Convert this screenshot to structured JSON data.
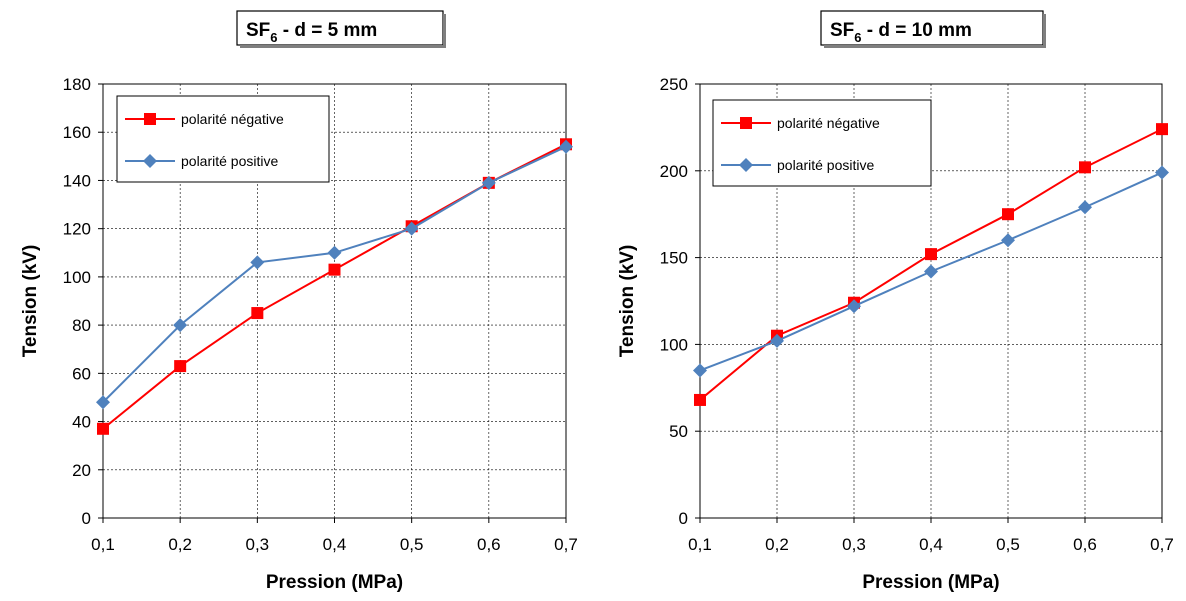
{
  "chart_data": [
    {
      "type": "line",
      "title": "SF6 - d = 5 mm",
      "title_parts": {
        "main": "SF",
        "subscript": "6",
        "rest": " - d = 5 mm"
      },
      "xlabel": "Pression (MPa)",
      "ylabel": "Tension (kV)",
      "categories": [
        "0,1",
        "0,2",
        "0,3",
        "0,4",
        "0,5",
        "0,6",
        "0,7"
      ],
      "ylim": [
        0,
        180
      ],
      "yticks": [
        "0",
        "20",
        "40",
        "60",
        "80",
        "100",
        "120",
        "140",
        "160",
        "180"
      ],
      "grid": true,
      "legend_position": "top-left",
      "series": [
        {
          "name": "polarité négative",
          "color": "#ff0000",
          "marker": "square",
          "values": [
            37,
            63,
            85,
            103,
            121,
            139,
            155
          ]
        },
        {
          "name": "polarité positive",
          "color": "#4f81bd",
          "marker": "diamond",
          "values": [
            48,
            80,
            106,
            110,
            120,
            139,
            154
          ]
        }
      ]
    },
    {
      "type": "line",
      "title": "SF6 - d = 10 mm",
      "title_parts": {
        "main": "SF",
        "subscript": "6",
        "rest": " - d = 10 mm"
      },
      "xlabel": "Pression (MPa)",
      "ylabel": "Tension (kV)",
      "categories": [
        "0,1",
        "0,2",
        "0,3",
        "0,4",
        "0,5",
        "0,6",
        "0,7"
      ],
      "ylim": [
        0,
        250
      ],
      "yticks": [
        "0",
        "50",
        "100",
        "150",
        "200",
        "250"
      ],
      "grid": true,
      "legend_position": "top-left",
      "series": [
        {
          "name": "polarité négative",
          "color": "#ff0000",
          "marker": "square",
          "values": [
            68,
            105,
            124,
            152,
            175,
            202,
            224
          ]
        },
        {
          "name": "polarité positive",
          "color": "#4f81bd",
          "marker": "diamond",
          "values": [
            85,
            102,
            122,
            142,
            160,
            179,
            199
          ]
        }
      ]
    }
  ]
}
